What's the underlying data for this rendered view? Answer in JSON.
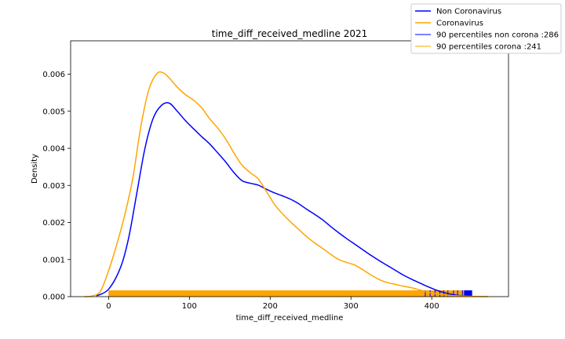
{
  "chart_data": {
    "type": "line",
    "title": "time_diff_received_medline 2021",
    "xlabel": "time_diff_received_medline",
    "ylabel": "Density",
    "xlim": [
      -47,
      495
    ],
    "ylim": [
      0,
      0.0069
    ],
    "x_ticks": [
      0,
      100,
      200,
      300,
      400
    ],
    "x_tick_labels": [
      "0",
      "100",
      "200",
      "300",
      "400"
    ],
    "y_ticks": [
      0,
      0.001,
      0.002,
      0.003,
      0.004,
      0.005,
      0.006
    ],
    "y_tick_labels": [
      "0.000",
      "0.001",
      "0.002",
      "0.003",
      "0.004",
      "0.005",
      "0.006"
    ],
    "grid": false,
    "legend_position": "top-right",
    "series": [
      {
        "name": "Non Coronavirus",
        "color": "#0000ff",
        "x": [
          -15,
          0,
          15,
          25,
          35,
          45,
          55,
          65,
          75,
          85,
          95,
          105,
          115,
          125,
          135,
          145,
          155,
          165,
          175,
          185,
          195,
          205,
          215,
          225,
          235,
          245,
          255,
          265,
          275,
          285,
          295,
          305,
          315,
          325,
          335,
          345,
          355,
          365,
          375,
          385,
          395,
          405,
          415,
          425,
          435,
          450
        ],
        "y": [
          2e-05,
          0.0002,
          0.0008,
          0.0016,
          0.0028,
          0.004,
          0.0048,
          0.00515,
          0.00522,
          0.005,
          0.00475,
          0.00453,
          0.00432,
          0.00412,
          0.00388,
          0.00363,
          0.00335,
          0.00313,
          0.00306,
          0.00301,
          0.0029,
          0.0028,
          0.00272,
          0.00263,
          0.00251,
          0.00236,
          0.00222,
          0.00207,
          0.00189,
          0.00172,
          0.00156,
          0.00141,
          0.00126,
          0.00111,
          0.00097,
          0.00084,
          0.00071,
          0.00058,
          0.00047,
          0.00037,
          0.00027,
          0.00018,
          0.00011,
          6e-05,
          3e-05,
          1e-05
        ]
      },
      {
        "name": "Coronavirus",
        "color": "#ffa500",
        "x": [
          -30,
          -20,
          -10,
          0,
          10,
          20,
          30,
          40,
          50,
          60,
          68,
          75,
          85,
          95,
          105,
          115,
          125,
          135,
          145,
          155,
          165,
          175,
          185,
          195,
          205,
          215,
          225,
          235,
          245,
          255,
          265,
          275,
          285,
          295,
          305,
          315,
          325,
          335,
          345,
          355,
          365,
          375,
          385,
          395,
          405,
          415,
          425,
          435,
          445,
          455,
          470
        ],
        "y": [
          0,
          2e-05,
          0.00015,
          0.0007,
          0.0014,
          0.0022,
          0.0032,
          0.0046,
          0.0056,
          0.00602,
          0.00603,
          0.0059,
          0.00565,
          0.00545,
          0.0053,
          0.0051,
          0.0048,
          0.00455,
          0.00425,
          0.00388,
          0.00355,
          0.00335,
          0.00318,
          0.00285,
          0.0025,
          0.00224,
          0.00202,
          0.00182,
          0.00162,
          0.00145,
          0.0013,
          0.00114,
          0.001,
          0.00092,
          0.00085,
          0.00072,
          0.00058,
          0.00046,
          0.00038,
          0.00033,
          0.00028,
          0.00024,
          0.00018,
          0.00012,
          8e-05,
          5e-05,
          3e-05,
          2e-05,
          1e-05,
          5e-06,
          0
        ]
      },
      {
        "name": "90 percentiles non corona :286",
        "color": "#0000ff",
        "kind": "rug",
        "range": [
          0,
          450
        ]
      },
      {
        "name": "90 percentiles corona :241",
        "color": "#ffa500",
        "kind": "rug",
        "range": [
          0,
          440
        ]
      }
    ]
  }
}
